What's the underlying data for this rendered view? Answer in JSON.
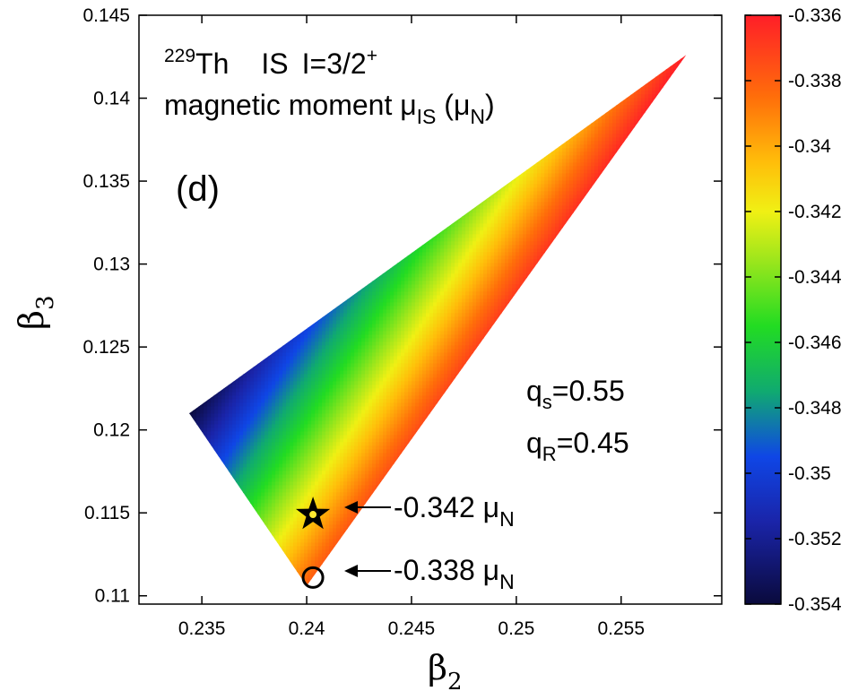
{
  "chart_data": {
    "type": "heatmap",
    "panel_label": "(d)",
    "title": {
      "isotope_mass": "229",
      "element": "Th",
      "state": "IS",
      "spin_prefix": "I=3/2",
      "parity": "+",
      "quantity": "magnetic moment μ",
      "quantity_sub": "IS",
      "unit_open": " (μ",
      "unit_sub": "N",
      "unit_close": ")"
    },
    "xlabel": {
      "symbol": "β",
      "sub": "2"
    },
    "ylabel": {
      "symbol": "β",
      "sub": "3"
    },
    "xlim": [
      0.232,
      0.2598
    ],
    "ylim": [
      0.1095,
      0.145
    ],
    "x_ticks": [
      0.235,
      0.24,
      0.245,
      0.25,
      0.255
    ],
    "x_tick_labels": [
      "0.235",
      "0.24",
      "0.245",
      "0.25",
      "0.255"
    ],
    "y_ticks": [
      0.11,
      0.115,
      0.12,
      0.125,
      0.13,
      0.135,
      0.14,
      0.145
    ],
    "y_tick_labels": [
      "0.11",
      "0.115",
      "0.12",
      "0.125",
      "0.13",
      "0.135",
      "0.14",
      "0.145"
    ],
    "region": {
      "vertices": [
        [
          0.2344,
          0.121
        ],
        [
          0.24,
          0.1106
        ],
        [
          0.2581,
          0.1426
        ]
      ],
      "value_left_corner": -0.354,
      "value_bottom_corner": -0.338,
      "value_top_corner": -0.336
    },
    "colorbar": {
      "range": [
        -0.354,
        -0.336
      ],
      "ticks": [
        -0.336,
        -0.338,
        -0.34,
        -0.342,
        -0.344,
        -0.346,
        -0.348,
        -0.35,
        -0.352,
        -0.354
      ],
      "tick_labels": [
        "-0.336",
        "-0.338",
        "-0.34",
        "-0.342",
        "-0.344",
        "-0.346",
        "-0.348",
        "-0.35",
        "-0.352",
        "-0.354"
      ],
      "stops": [
        {
          "value": -0.354,
          "color": "#0a0a3c"
        },
        {
          "value": -0.3515,
          "color": "#1a24a8"
        },
        {
          "value": -0.3495,
          "color": "#0f46e6"
        },
        {
          "value": -0.3475,
          "color": "#10aa70"
        },
        {
          "value": -0.3455,
          "color": "#22dc22"
        },
        {
          "value": -0.3435,
          "color": "#9ce61c"
        },
        {
          "value": -0.342,
          "color": "#f0f014"
        },
        {
          "value": -0.3405,
          "color": "#ffbe0a"
        },
        {
          "value": -0.3385,
          "color": "#ff6e0a"
        },
        {
          "value": -0.336,
          "color": "#ff1e28"
        }
      ]
    },
    "params": [
      {
        "symbol": "q",
        "sub": "s",
        "value": "=0.55"
      },
      {
        "symbol": "q",
        "sub": "R",
        "value": "=0.45"
      }
    ],
    "annotations": [
      {
        "marker": "star",
        "x": 0.2403,
        "y": 0.1149,
        "text": "-0.342 μ",
        "sub": "N"
      },
      {
        "marker": "circle",
        "x": 0.2403,
        "y": 0.1111,
        "text": "-0.338 μ",
        "sub": "N"
      }
    ]
  }
}
